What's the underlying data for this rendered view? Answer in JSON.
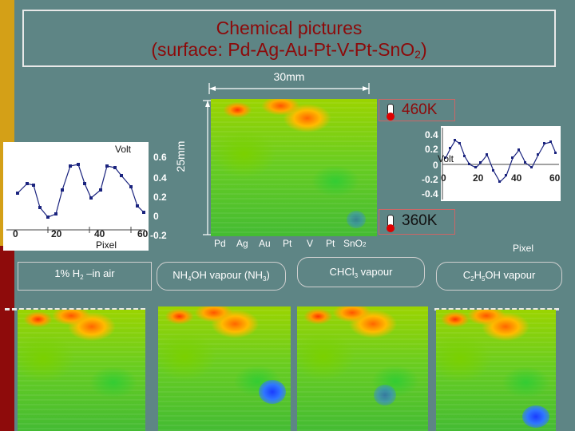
{
  "title": {
    "line1": "Chemical pictures",
    "line2_prefix": "(surface: Pd-Ag-Au-Pt-V-Pt-SnO",
    "line2_sub": "2",
    "line2_suffix": ")"
  },
  "scale": {
    "width_label": "30mm",
    "height_label": "25mm"
  },
  "temperatures": {
    "top": "460K",
    "bottom": "360K"
  },
  "thermometer_icon": "thermometer-icon",
  "surface_labels": {
    "pd": "Pd",
    "ag": "Ag",
    "au": "Au",
    "pt1": "Pt",
    "v": "V",
    "pt2": "Pt",
    "sno2_base": "SnO",
    "sno2_sub": "2"
  },
  "left_plot": {
    "ylabel": "Volt",
    "xlabel": "Pixel",
    "xticks": [
      "0",
      "20",
      "40",
      "60"
    ],
    "yticks": [
      "0.6",
      "0.4",
      "0.2",
      "0",
      "-0.2"
    ]
  },
  "right_plot": {
    "ylabel": "Volt",
    "xlabel": "Pixel",
    "xticks": [
      "0",
      "20",
      "40",
      "60"
    ],
    "yticks": [
      "0.4",
      "0.2",
      "0",
      "-0.2",
      "-0.4"
    ]
  },
  "exposures": [
    {
      "pre": "1% H",
      "sub": "2",
      "post": " –in air"
    },
    {
      "pre": "NH",
      "sub": "4",
      "mid": "OH vapour (NH",
      "sub2": "3",
      "post": ")"
    },
    {
      "pre": "CHCl",
      "sub": "3",
      "post": " vapour"
    },
    {
      "pre": "C",
      "sub": "2",
      "mid": "H",
      "sub2": "5",
      "post": "OH vapour"
    }
  ],
  "colors": {
    "title": "#8c0a0a",
    "background": "#5e8585",
    "accent_gold": "#d4a017",
    "accent_red": "#8e0b0b",
    "plot_marker": "#1a237e"
  }
}
